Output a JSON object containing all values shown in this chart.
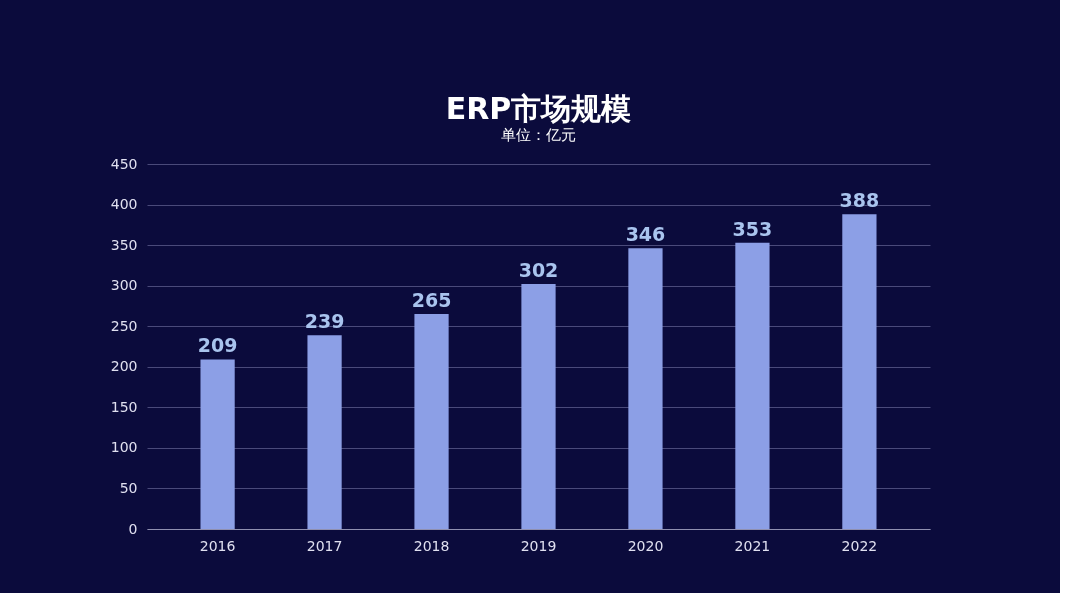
{
  "chart_data": {
    "type": "bar",
    "title": "ERP市场规模",
    "subtitle": "单位：亿元",
    "categories": [
      "2016",
      "2017",
      "2018",
      "2019",
      "2020",
      "2021",
      "2022"
    ],
    "values": [
      209,
      239,
      265,
      302,
      346,
      353,
      388
    ],
    "color": "#8c9fe6",
    "ylim": [
      0,
      450
    ],
    "yticks": [
      0,
      50,
      100,
      150,
      200,
      250,
      300,
      350,
      400,
      450
    ],
    "grid": "y",
    "data_labels": true
  }
}
